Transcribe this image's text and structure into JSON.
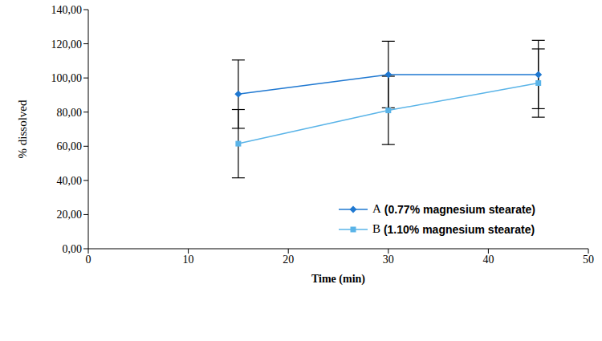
{
  "chart_data": {
    "type": "line",
    "x_label": "Time (min)",
    "y_label": "% dissolved",
    "x": [
      15,
      30,
      45
    ],
    "series": [
      {
        "name": "A (0.77% magnesium stearate)",
        "color": "#1f78d1",
        "marker": "diamond",
        "values": [
          90.5,
          102,
          102
        ],
        "errors": [
          20,
          19.5,
          20
        ]
      },
      {
        "name": "B (1.10% magnesium stearate)",
        "color": "#5ab4e8",
        "marker": "square",
        "values": [
          61.5,
          81,
          97
        ],
        "errors": [
          20,
          20,
          20
        ]
      }
    ],
    "xlim": [
      0,
      50
    ],
    "xticks": [
      0,
      10,
      20,
      30,
      40,
      50
    ],
    "ylim": [
      0,
      140
    ],
    "yticks": [
      {
        "value": 0,
        "label": "0,00"
      },
      {
        "value": 20,
        "label": "20,00"
      },
      {
        "value": 40,
        "label": "40,00"
      },
      {
        "value": 60,
        "label": "60,00"
      },
      {
        "value": 80,
        "label": "80,00"
      },
      {
        "value": 100,
        "label": "100,00"
      },
      {
        "value": 120,
        "label": "120,00"
      },
      {
        "value": 140,
        "label": "140,00"
      }
    ],
    "grid": false,
    "legend": "lower right"
  }
}
